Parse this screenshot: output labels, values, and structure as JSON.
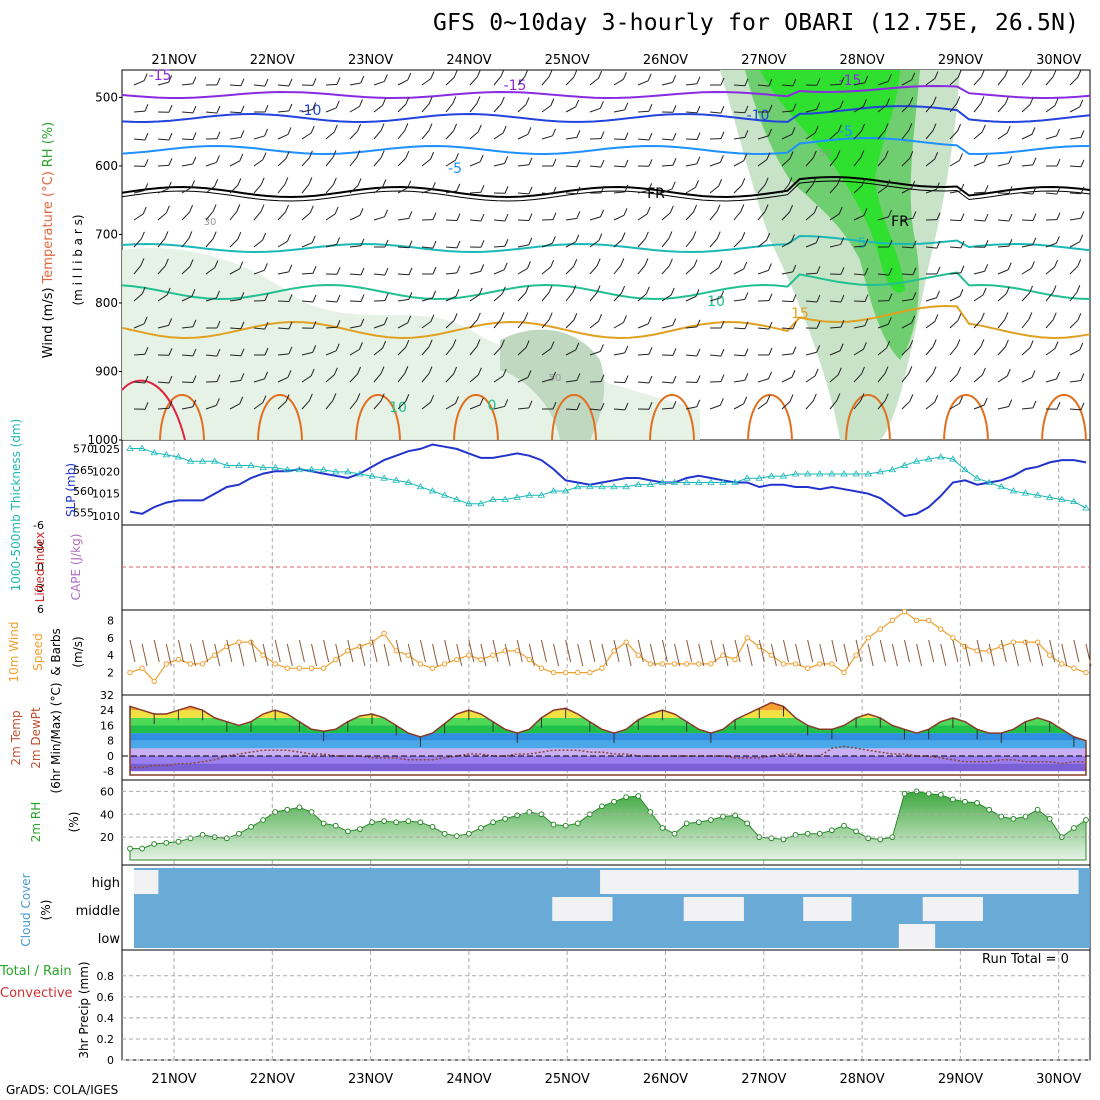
{
  "title": "GFS 0~10day 3-hourly for OBARI (12.75E, 26.5N)",
  "credit": "GrADS: COLA/IGES",
  "dates": [
    "21NOV",
    "22NOV",
    "23NOV",
    "24NOV",
    "25NOV",
    "26NOV",
    "27NOV",
    "28NOV",
    "29NOV",
    "30NOV"
  ],
  "colors": {
    "rh_green": "#3fd43f",
    "sounding_teal": "#1bb8b8",
    "slp_blue": "#2233cc",
    "wind_orange": "#f0a030",
    "grid_gray": "#b0b0b0",
    "cloud_blue": "#6aaad6",
    "dew_brown": "#8b4a3a"
  },
  "panels": {
    "sounding": {
      "pressure_ticks": [
        "500",
        "600",
        "700",
        "800",
        "900",
        "1000"
      ],
      "y_caption_parts": [
        "Wind (m/s)",
        "Temperature (°C)",
        "RH (%)"
      ],
      "y_caption_units": "(m i l l i b a r s)",
      "isotherm_labels": [
        {
          "text": "-15",
          "color": "#8a2be2"
        },
        {
          "text": "-15",
          "color": "#8a2be2"
        },
        {
          "text": "-15",
          "color": "#8a2be2"
        },
        {
          "text": "-10",
          "color": "#2244dd"
        },
        {
          "text": "-10",
          "color": "#2244dd"
        },
        {
          "text": "-5",
          "color": "#1e90ff"
        },
        {
          "text": "-5",
          "color": "#1e90ff"
        },
        {
          "text": "FR",
          "color": "#000000"
        },
        {
          "text": "FR",
          "color": "#000000"
        },
        {
          "text": "5",
          "color": "#1bb8b8"
        },
        {
          "text": "10",
          "color": "#20c090"
        },
        {
          "text": "10",
          "color": "#20c090"
        },
        {
          "text": "15",
          "color": "#e0a020"
        },
        {
          "text": "0",
          "color": "#20c090"
        },
        {
          "text": "30",
          "color": "#999999"
        },
        {
          "text": "50",
          "color": "#999999"
        },
        {
          "text": "50",
          "color": "#999999"
        }
      ]
    },
    "slp": {
      "left_ticks": [
        "570",
        "565",
        "560",
        "555"
      ],
      "right_ticks": [
        "1025",
        "1020",
        "1015",
        "1010"
      ],
      "caption_left": "1000-500mb Thickness (dm)",
      "caption_right": "SLP (mb)"
    },
    "cape": {
      "left_ticks": [
        "-6",
        "-3",
        "0",
        "3",
        "6"
      ],
      "caption_left": "Lifted Index",
      "caption_right": "CAPE (J/kg)"
    },
    "wind10m": {
      "ticks": [
        "8",
        "6",
        "4",
        "2"
      ],
      "caption_a": "10m Wind",
      "caption_b": "Speed",
      "caption_c": "& Barbs",
      "caption_units": "(m/s)"
    },
    "temp2m": {
      "ticks": [
        "32",
        "24",
        "16",
        "8",
        "0",
        "-8"
      ],
      "caption_a": "2m Temp",
      "caption_b": "2m DewPt",
      "caption_c": "(6hr Min/Max) (°C)"
    },
    "rh2m": {
      "ticks": [
        "60",
        "40",
        "20"
      ],
      "caption_a": "2m RH",
      "caption_units": "(%)"
    },
    "cloud": {
      "level_labels": [
        "high",
        "middle",
        "low"
      ],
      "caption": "Cloud Cover",
      "caption_units": "(%)"
    },
    "precip": {
      "ticks": [
        "0.8",
        "0.6",
        "0.4",
        "0.2",
        "0"
      ],
      "run_total": "Run Total = 0",
      "caption_a": "Total / Rain",
      "caption_b": "Convective",
      "caption_c": "3hr Precip (mm)"
    }
  },
  "chart_data": {
    "type": "line",
    "time_steps_3h": 80,
    "slp_mb": [
      1011,
      1010.5,
      1012,
      1013,
      1013.5,
      1013.5,
      1013.5,
      1015,
      1016.5,
      1017,
      1018.5,
      1019.5,
      1020,
      1020,
      1020.5,
      1020,
      1019.5,
      1019,
      1018.5,
      1019.5,
      1021,
      1022.5,
      1023.5,
      1024.5,
      1025,
      1026,
      1025.5,
      1025,
      1024,
      1023,
      1023,
      1023.5,
      1024,
      1023.5,
      1022.5,
      1020.5,
      1018,
      1017.5,
      1017,
      1017.5,
      1018,
      1018.5,
      1018.5,
      1018,
      1017.5,
      1017.5,
      1018.5,
      1019,
      1018.5,
      1018,
      1017.5,
      1017.5,
      1016.5,
      1017,
      1017,
      1016.5,
      1016.5,
      1016,
      1016.5,
      1016,
      1015.5,
      1015,
      1014,
      1012,
      1010,
      1010.5,
      1012,
      1014.5,
      1017.5,
      1018,
      1017,
      1017.5,
      1018,
      1019,
      1020.5,
      1021,
      1022,
      1022.5,
      1022.5,
      1022
    ],
    "thickness_dm": [
      570,
      570,
      569,
      568.5,
      568,
      567,
      567,
      567,
      566,
      566,
      566,
      565.5,
      565.5,
      565,
      565,
      565,
      565,
      564.5,
      564.5,
      564,
      563.5,
      563,
      562.5,
      562,
      561,
      560,
      559,
      558,
      557,
      557,
      558,
      558,
      558.5,
      559,
      559,
      560,
      560,
      561,
      561,
      561,
      561,
      561,
      561.5,
      561.5,
      562,
      562,
      562,
      562,
      562,
      562,
      562,
      563,
      563,
      563.5,
      563.5,
      564,
      564,
      564,
      564,
      564,
      564,
      564,
      564.5,
      565,
      566,
      567,
      567.5,
      568,
      567.5,
      565,
      563,
      562,
      561,
      560,
      559.5,
      559,
      558.5,
      558,
      557.5,
      556
    ],
    "wind10m_speed_ms": [
      2,
      2.5,
      1,
      3,
      3.5,
      3,
      3,
      4,
      5,
      5.5,
      5.5,
      4,
      3,
      2.5,
      2.5,
      2.5,
      2.5,
      3.5,
      4.5,
      5,
      5.5,
      6.5,
      4.5,
      4,
      3,
      2.5,
      3,
      3.5,
      4,
      3.5,
      4,
      4.5,
      4.5,
      3.5,
      2.5,
      2,
      2,
      2,
      2,
      2.5,
      4.5,
      5.5,
      4,
      3,
      3,
      3,
      3,
      3,
      3,
      4,
      3.5,
      6,
      5,
      4,
      3,
      3,
      2.5,
      3,
      3,
      2,
      4,
      6,
      7,
      8,
      9,
      8,
      8,
      7,
      6,
      5,
      4.5,
      4.5,
      5,
      5.5,
      5.5,
      5.5,
      4,
      3,
      2.5,
      2
    ],
    "temp2m_max_c": [
      26,
      24,
      22,
      22,
      24,
      26,
      24,
      20,
      18,
      16,
      18,
      22,
      24,
      22,
      18,
      14,
      13,
      14,
      18,
      21,
      22,
      20,
      16,
      12,
      10,
      12,
      17,
      22,
      24,
      22,
      18,
      14,
      12,
      14,
      20,
      24,
      25,
      22,
      18,
      14,
      12,
      14,
      19,
      22,
      24,
      22,
      18,
      14,
      12,
      14,
      19,
      22,
      25,
      28,
      26,
      20,
      16,
      14,
      14,
      16,
      20,
      22,
      20,
      16,
      14,
      12,
      14,
      18,
      20,
      18,
      14,
      12,
      12,
      14,
      18,
      20,
      18,
      14,
      10,
      8
    ],
    "temp2m_min_c": [
      14,
      13,
      12,
      12,
      13,
      14,
      13,
      12,
      11,
      10,
      11,
      12,
      13,
      12,
      11,
      10,
      9,
      10,
      11,
      12,
      13,
      12,
      10,
      8,
      7,
      8,
      10,
      12,
      13,
      12,
      11,
      9,
      8,
      9,
      11,
      13,
      14,
      12,
      10,
      8,
      7,
      8,
      11,
      12,
      13,
      12,
      10,
      8,
      7,
      8,
      11,
      12,
      14,
      16,
      15,
      12,
      10,
      8,
      8,
      9,
      11,
      12,
      12,
      10,
      9,
      8,
      9,
      11,
      12,
      11,
      9,
      8,
      8,
      9,
      11,
      12,
      11,
      9,
      7,
      6
    ],
    "dewpt2m_c": [
      -6,
      -6,
      -5,
      -5,
      -4,
      -4,
      -3,
      -2,
      0,
      1,
      2,
      3,
      3,
      3,
      2,
      1,
      1,
      0,
      0,
      0,
      -1,
      -1,
      -1,
      -2,
      -2,
      -2,
      -1,
      0,
      1,
      1,
      0,
      0,
      1,
      1,
      2,
      3,
      3,
      3,
      2,
      2,
      1,
      1,
      0,
      0,
      0,
      0,
      0,
      0,
      0,
      0,
      -1,
      -1,
      -1,
      0,
      1,
      1,
      0,
      0,
      4,
      5,
      4,
      3,
      2,
      1,
      1,
      0,
      0,
      -1,
      -2,
      -3,
      -3,
      -3,
      -2,
      -2,
      -3,
      -3,
      -3,
      -4,
      -3,
      -3
    ],
    "rh2m_pct": [
      10,
      10,
      14,
      15,
      16,
      19,
      22,
      20,
      19,
      23,
      29,
      35,
      42,
      44,
      46,
      42,
      32,
      30,
      25,
      27,
      33,
      34,
      33,
      34,
      33,
      29,
      23,
      21,
      23,
      28,
      33,
      36,
      39,
      42,
      40,
      31,
      30,
      32,
      40,
      47,
      51,
      55,
      56,
      42,
      28,
      23,
      32,
      33,
      35,
      38,
      39,
      32,
      20,
      19,
      18,
      22,
      23,
      23,
      26,
      30,
      25,
      19,
      18,
      20,
      58,
      60,
      58,
      57,
      53,
      51,
      50,
      44,
      38,
      36,
      38,
      44,
      36,
      20,
      28,
      35
    ],
    "cape_jkg": [
      0,
      0,
      0,
      0,
      0,
      0,
      0,
      0,
      0,
      0
    ],
    "lifted_index": [
      0,
      0,
      0,
      0,
      0,
      0,
      0,
      0,
      0,
      0
    ],
    "precip_3h_mm": [
      0,
      0,
      0,
      0,
      0,
      0,
      0,
      0,
      0,
      0
    ],
    "run_total_mm": 0,
    "cloud_high": [
      1,
      1,
      0,
      0,
      0,
      0,
      0,
      0,
      0,
      0,
      0,
      0,
      0,
      0,
      0,
      0,
      0,
      0,
      0,
      0,
      0,
      0,
      0,
      0,
      0,
      0,
      0,
      0,
      0,
      0,
      0,
      0,
      0,
      0,
      0,
      0,
      0,
      0,
      0,
      1,
      1,
      1,
      1,
      1,
      1,
      1,
      1,
      1,
      1,
      1,
      1,
      1,
      1,
      1,
      1,
      1,
      1,
      1,
      1,
      1,
      1,
      1,
      1,
      1,
      1,
      1,
      1,
      1,
      1,
      1,
      1,
      1,
      1,
      1,
      1,
      1,
      1,
      1,
      1,
      0
    ],
    "cloud_middle": [
      0,
      0,
      0,
      0,
      0,
      0,
      0,
      0,
      0,
      0,
      0,
      0,
      0,
      0,
      0,
      0,
      0,
      0,
      0,
      0,
      0,
      0,
      0,
      0,
      0,
      0,
      0,
      0,
      0,
      0,
      0,
      0,
      0,
      0,
      0,
      1,
      1,
      1,
      1,
      1,
      0,
      0,
      0,
      0,
      0,
      0,
      1,
      1,
      1,
      1,
      1,
      0,
      0,
      0,
      0,
      0,
      1,
      1,
      1,
      1,
      0,
      0,
      0,
      0,
      0,
      0,
      1,
      1,
      1,
      1,
      1,
      0,
      0,
      0,
      0,
      0,
      0,
      0,
      0,
      0
    ],
    "cloud_low": [
      0,
      0,
      0,
      0,
      0,
      0,
      0,
      0,
      0,
      0,
      0,
      0,
      0,
      0,
      0,
      0,
      0,
      0,
      0,
      0,
      0,
      0,
      0,
      0,
      0,
      0,
      0,
      0,
      0,
      0,
      0,
      0,
      0,
      0,
      0,
      0,
      0,
      0,
      0,
      0,
      0,
      0,
      0,
      0,
      0,
      0,
      0,
      0,
      0,
      0,
      0,
      0,
      0,
      0,
      0,
      0,
      0,
      0,
      0,
      0,
      0,
      0,
      0,
      0,
      1,
      1,
      1,
      0,
      0,
      0,
      0,
      0,
      0,
      0,
      0,
      0,
      0,
      0,
      0,
      0
    ]
  }
}
